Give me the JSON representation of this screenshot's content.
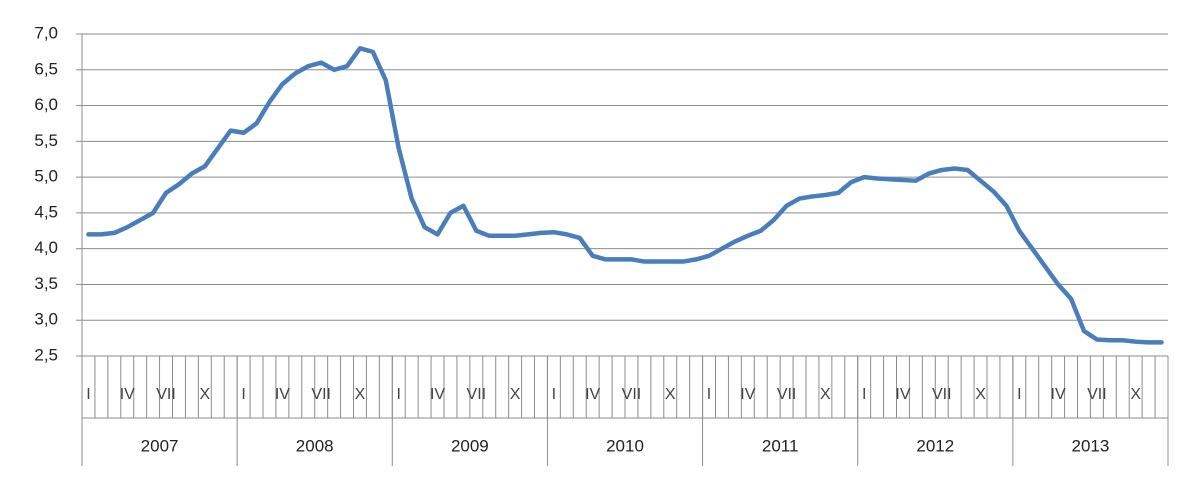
{
  "chart_data": {
    "type": "line",
    "categories": [
      "I",
      null,
      null,
      "IV",
      null,
      null,
      "VII",
      null,
      null,
      "X",
      null,
      null,
      "I",
      null,
      null,
      "IV",
      null,
      null,
      "VII",
      null,
      null,
      "X",
      null,
      null,
      "I",
      null,
      null,
      "IV",
      null,
      null,
      "VII",
      null,
      null,
      "X",
      null,
      null,
      "I",
      null,
      null,
      "IV",
      null,
      null,
      "VII",
      null,
      null,
      "X",
      null,
      null,
      "I",
      null,
      null,
      "IV",
      null,
      null,
      "VII",
      null,
      null,
      "X",
      null,
      null,
      "I",
      null,
      null,
      "IV",
      null,
      null,
      "VII",
      null,
      null,
      "X",
      null,
      null,
      "I",
      null,
      null,
      "IV",
      null,
      null,
      "VII",
      null,
      null,
      "X",
      null,
      null
    ],
    "year_groups": [
      "2007",
      "2008",
      "2009",
      "2010",
      "2011",
      "2012",
      "2013"
    ],
    "values": [
      4.2,
      4.2,
      4.22,
      4.3,
      4.4,
      4.5,
      4.78,
      4.9,
      5.05,
      5.15,
      5.4,
      5.65,
      5.62,
      5.75,
      6.05,
      6.3,
      6.45,
      6.55,
      6.6,
      6.5,
      6.55,
      6.8,
      6.75,
      6.35,
      5.4,
      4.7,
      4.3,
      4.2,
      4.5,
      4.6,
      4.25,
      4.18,
      4.18,
      4.18,
      4.2,
      4.22,
      4.23,
      4.2,
      4.15,
      3.9,
      3.85,
      3.85,
      3.85,
      3.82,
      3.82,
      3.82,
      3.82,
      3.85,
      3.9,
      4.0,
      4.1,
      4.18,
      4.25,
      4.4,
      4.6,
      4.7,
      4.73,
      4.75,
      4.78,
      4.93,
      5.0,
      4.98,
      4.97,
      4.96,
      4.95,
      5.05,
      5.1,
      5.12,
      5.1,
      4.95,
      4.8,
      4.6,
      4.25,
      4.0,
      3.75,
      3.5,
      3.3,
      2.85,
      2.73,
      2.72,
      2.72,
      2.7,
      2.69,
      2.69
    ],
    "color": "#4a7ebb",
    "ylim": [
      2.5,
      7.0
    ],
    "yticks": [
      {
        "value": 2.5,
        "label": "2,5"
      },
      {
        "value": 3.0,
        "label": "3,0"
      },
      {
        "value": 3.5,
        "label": "3,5"
      },
      {
        "value": 4.0,
        "label": "4,0"
      },
      {
        "value": 4.5,
        "label": "4,5"
      },
      {
        "value": 5.0,
        "label": "5,0"
      },
      {
        "value": 5.5,
        "label": "5,5"
      },
      {
        "value": 6.0,
        "label": "6,0"
      },
      {
        "value": 6.5,
        "label": "6,5"
      },
      {
        "value": 7.0,
        "label": "7,0"
      }
    ],
    "grid": true
  }
}
